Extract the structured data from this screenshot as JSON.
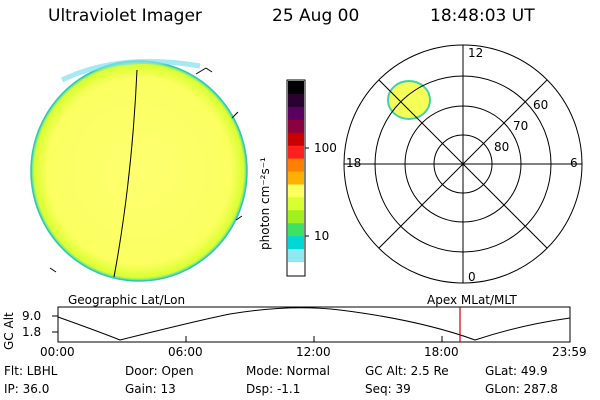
{
  "header": {
    "instrument": "Ultraviolet Imager",
    "date": "25 Aug 00",
    "time": "18:48:03 UT"
  },
  "colorbar": {
    "unit_label": "photon cm⁻²s⁻¹",
    "ticks": [
      "100",
      "10"
    ],
    "colors": [
      "#000000",
      "#2a0030",
      "#5a0060",
      "#8a0040",
      "#c80000",
      "#ff2020",
      "#ff8000",
      "#ffb000",
      "#ffff60",
      "#d8ff30",
      "#a0f020",
      "#40e060",
      "#00d8d8",
      "#90e8f0",
      "#ffffff"
    ]
  },
  "polar_plot": {
    "mlt_labels": {
      "top": "12",
      "left": "18",
      "right": "6",
      "bottom": "0"
    },
    "lat_labels": [
      "60",
      "70",
      "80"
    ]
  },
  "timeline": {
    "left_title": "Geographic Lat/Lon",
    "right_title": "Apex MLat/MLT",
    "y_label": "GC Alt",
    "y_ticks": [
      "9.0",
      "1.8"
    ],
    "x_ticks": [
      "00:00",
      "06:00",
      "12:00",
      "18:00",
      "23:59"
    ],
    "marker_time": "18:48",
    "marker_color": "#cc0000"
  },
  "status": {
    "row1": {
      "flt": "Flt: LBHL",
      "door": "Door: Open",
      "mode": "Mode: Normal",
      "gcalt": "GC Alt: 2.5 Re",
      "glat": "GLat:  49.9"
    },
    "row2": {
      "ip": "IP: 36.0",
      "gain": "Gain: 13",
      "dsp": "Dsp:    -1.1",
      "seq": "Seq: 39",
      "glon": "GLon: 287.8"
    }
  }
}
